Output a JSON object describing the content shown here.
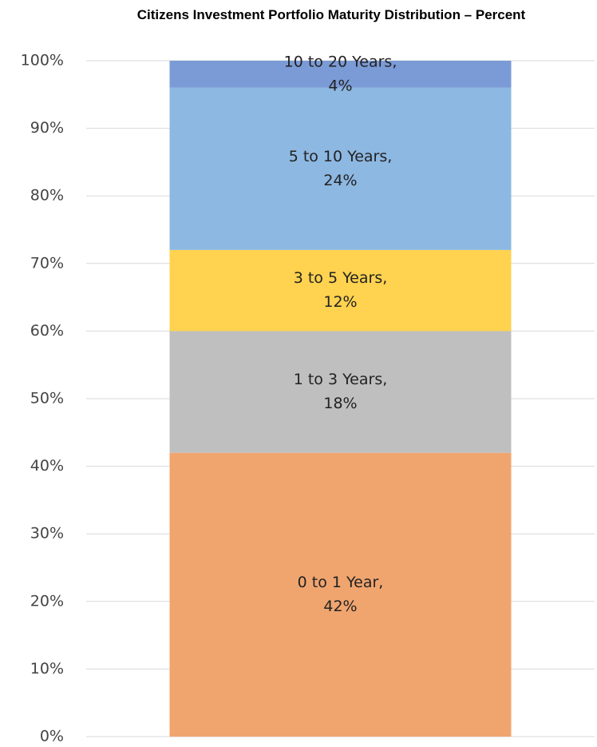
{
  "chart_data": {
    "type": "stacked_bar",
    "title": "Citizens Investment Portfolio Maturity Distribution – Percent",
    "categories": [
      null
    ],
    "series": [
      {
        "name": "0 to 1 Year",
        "color": "#f0a56f",
        "values": [
          42
        ],
        "value_labels": [
          "42%"
        ]
      },
      {
        "name": "1 to 3 Years",
        "color": "#bfbfbf",
        "values": [
          18
        ],
        "value_labels": [
          "18%"
        ]
      },
      {
        "name": "3 to 5 Years",
        "color": "#ffd24f",
        "values": [
          12
        ],
        "value_labels": [
          "12%"
        ]
      },
      {
        "name": "5 to 10 Years",
        "color": "#8db8e2",
        "values": [
          24
        ],
        "value_labels": [
          "24%"
        ]
      },
      {
        "name": "10 to 20 Years",
        "color": "#7b9bd6",
        "values": [
          4
        ],
        "value_labels": [
          "4%"
        ]
      }
    ],
    "ylim": [
      0,
      100
    ],
    "yticks": [
      {
        "value": 0,
        "label": "0%"
      },
      {
        "value": 10,
        "label": "10%"
      },
      {
        "value": 20,
        "label": "20%"
      },
      {
        "value": 30,
        "label": "30%"
      },
      {
        "value": 40,
        "label": "40%"
      },
      {
        "value": 50,
        "label": "50%"
      },
      {
        "value": 60,
        "label": "60%"
      },
      {
        "value": 70,
        "label": "70%"
      },
      {
        "value": 80,
        "label": "80%"
      },
      {
        "value": 90,
        "label": "90%"
      },
      {
        "value": 100,
        "label": "100%"
      }
    ],
    "grid": true
  }
}
